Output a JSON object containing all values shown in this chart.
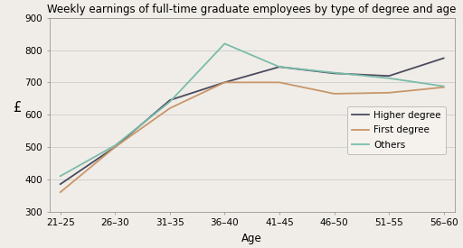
{
  "title": "Weekly earnings of full-time graduate employees by type of degree and age",
  "xlabel": "Age",
  "ylabel": "£",
  "age_groups": [
    "21–25",
    "26–30",
    "31–35",
    "36–40",
    "41–45",
    "46–50",
    "51–55",
    "56–60"
  ],
  "higher_degree": [
    385,
    500,
    645,
    700,
    748,
    728,
    720,
    775
  ],
  "first_degree": [
    360,
    500,
    620,
    700,
    700,
    665,
    668,
    685
  ],
  "others": [
    410,
    505,
    640,
    820,
    748,
    730,
    713,
    688
  ],
  "higher_degree_color": "#4a4a5e",
  "first_degree_color": "#c8966a",
  "others_color": "#7bbcaa",
  "ylim": [
    300,
    900
  ],
  "yticks": [
    300,
    400,
    500,
    600,
    700,
    800,
    900
  ],
  "background_color": "#f0ede8",
  "plot_bg_color": "#f0ede8",
  "grid_color": "#cccccc",
  "title_fontsize": 8.5,
  "axis_label_fontsize": 8.5,
  "tick_fontsize": 7.5,
  "legend_fontsize": 7.5
}
